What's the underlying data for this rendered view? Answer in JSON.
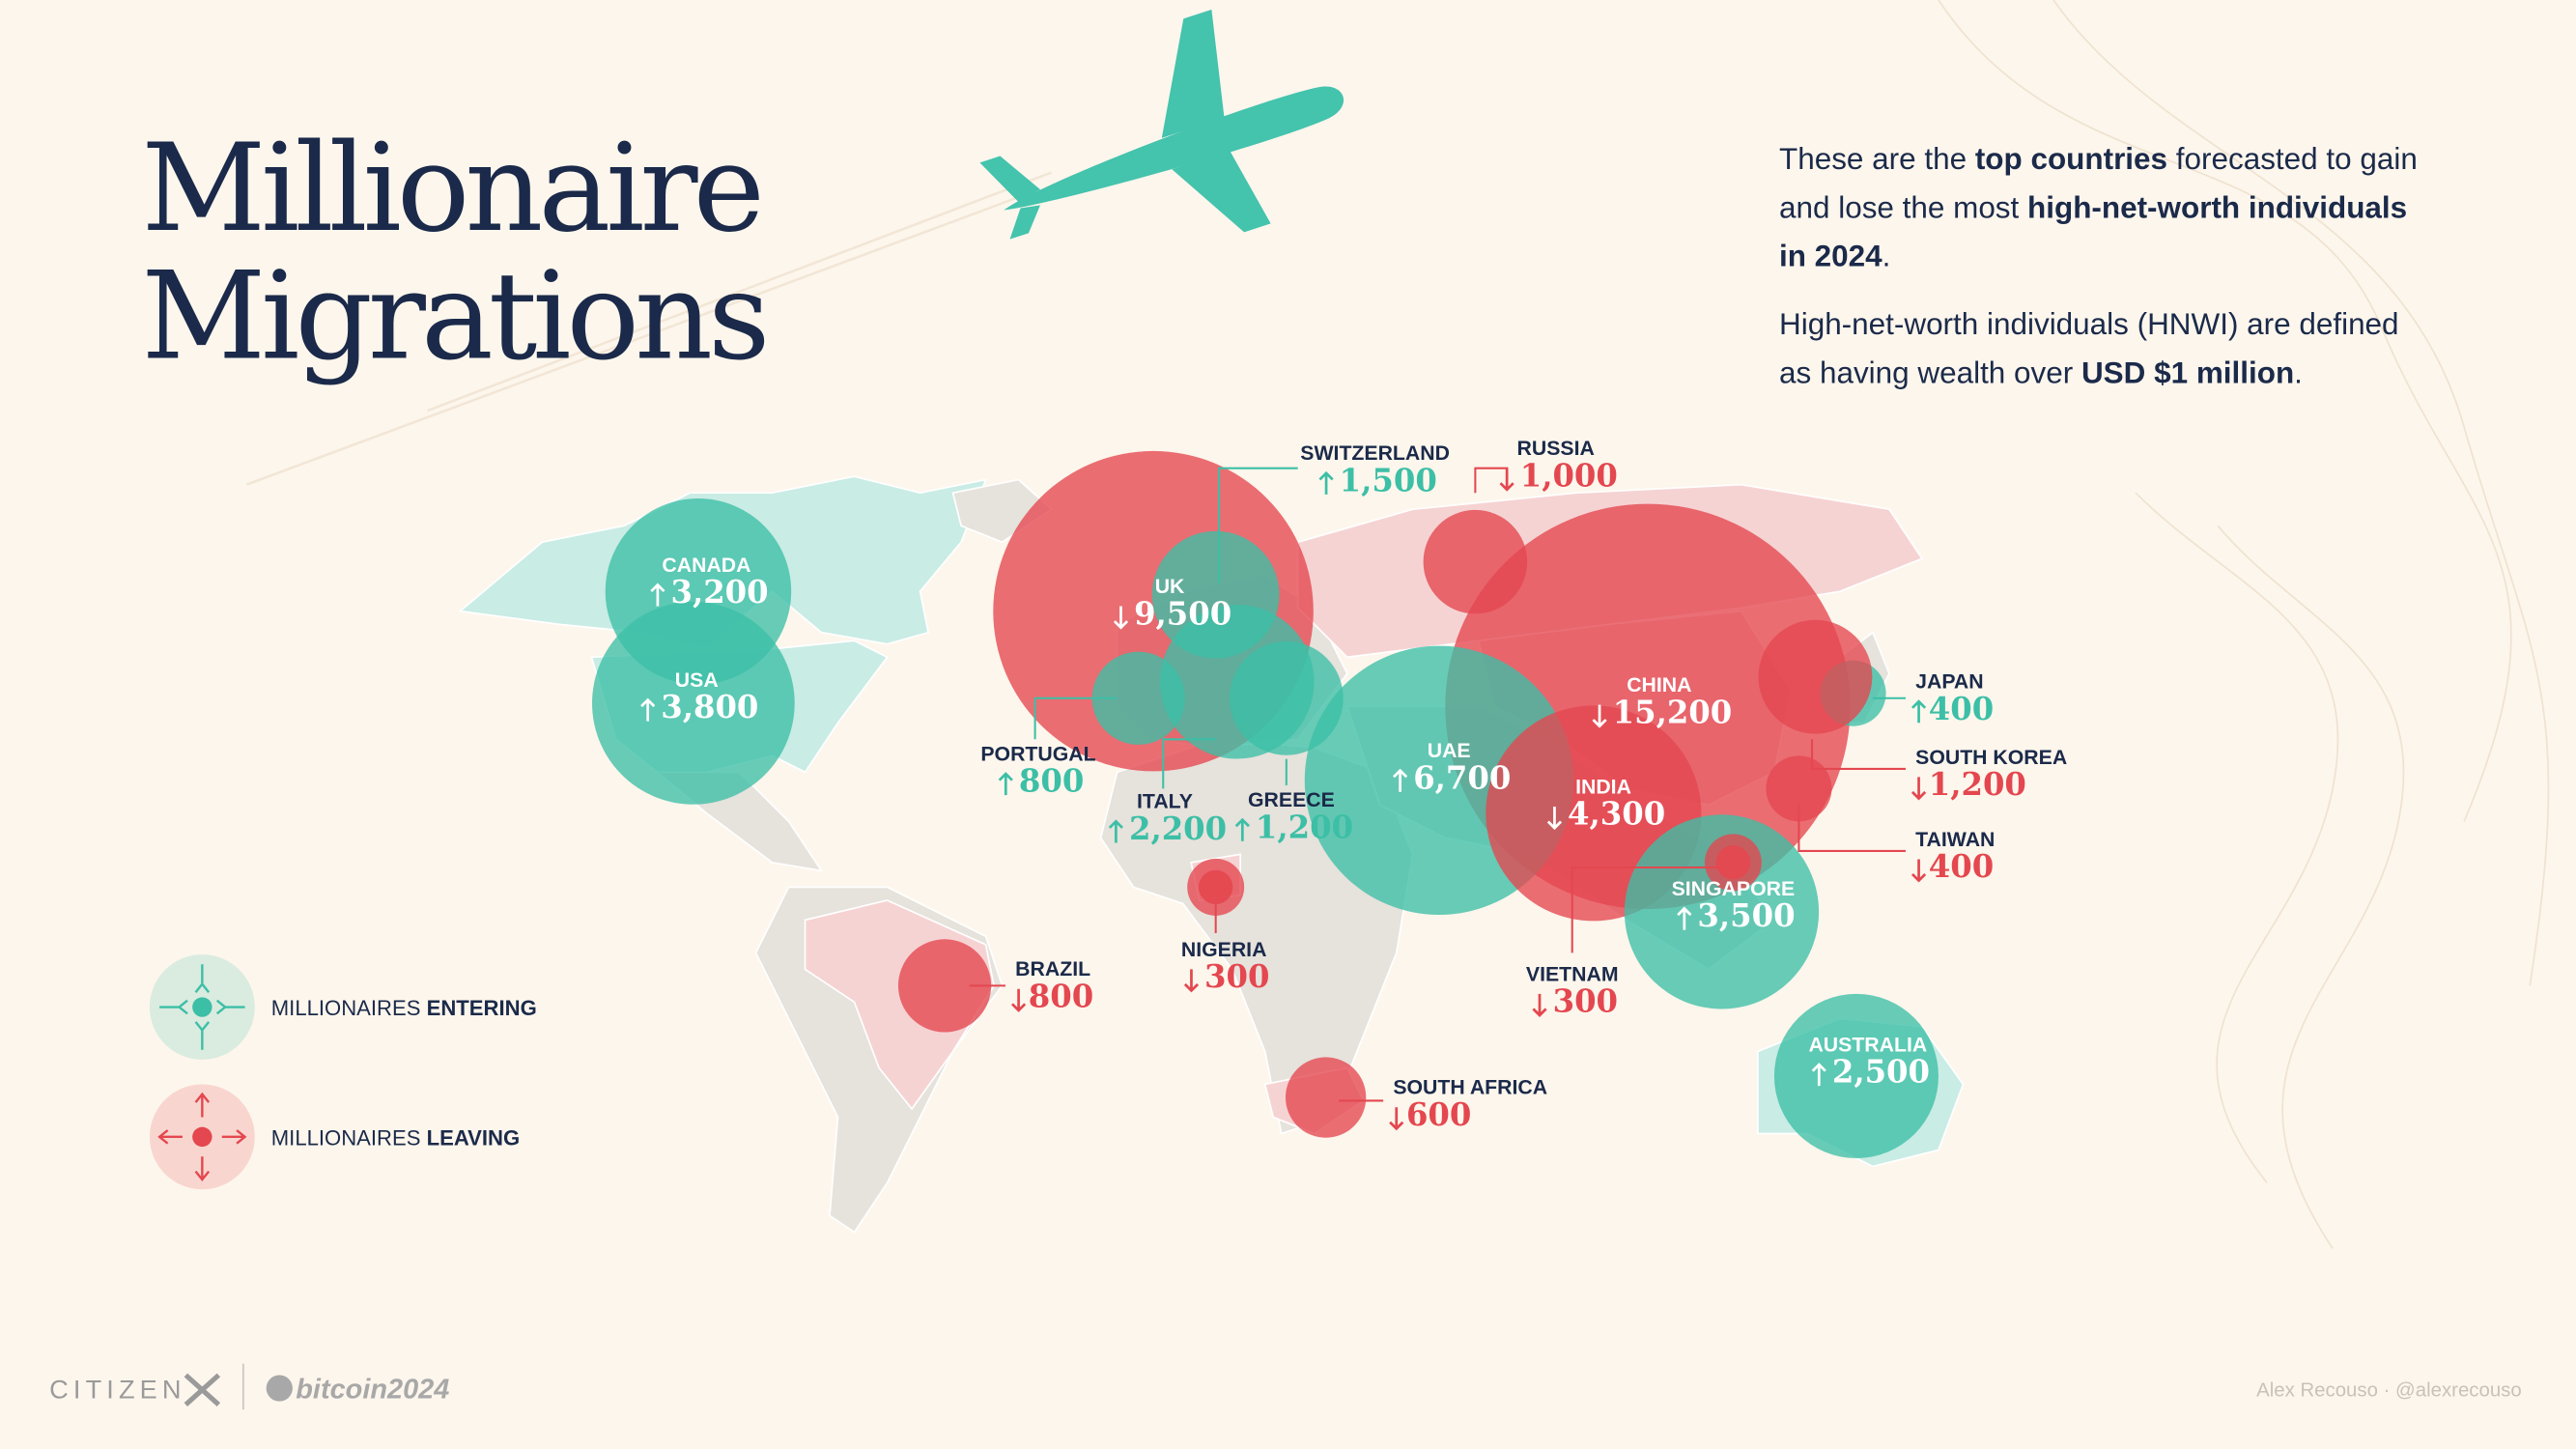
{
  "title": {
    "lines": [
      "Millionaire",
      "Migrations"
    ]
  },
  "description": {
    "paragraphs": [
      [
        [
          {
            "text": "These are the ",
            "bold": false
          },
          {
            "text": "top countries",
            "bold": true
          },
          {
            "text": " forecasted to gain",
            "bold": false
          }
        ],
        [
          {
            "text": "and lose the most ",
            "bold": false
          },
          {
            "text": "high-net-worth individuals",
            "bold": true
          }
        ],
        [
          {
            "text": "in 2024",
            "bold": true
          },
          {
            "text": ".",
            "bold": false
          }
        ]
      ],
      [
        [
          {
            "text": "High-net-worth individuals (HNWI) are defined",
            "bold": false
          }
        ],
        [
          {
            "text": "as having wealth over ",
            "bold": false
          },
          {
            "text": "USD $1 million",
            "bold": true
          },
          {
            "text": ".",
            "bold": false
          }
        ]
      ]
    ]
  },
  "legend": {
    "entering": {
      "parts": [
        {
          "text": "MILLIONAIRES ",
          "bold": false
        },
        {
          "text": "ENTERING",
          "bold": true
        }
      ],
      "color": "#3cbfa6"
    },
    "leaving": {
      "parts": [
        {
          "text": "MILLIONAIRES ",
          "bold": false
        },
        {
          "text": "LEAVING",
          "bold": true
        }
      ],
      "color": "#e4474f"
    }
  },
  "countries": [
    {
      "name": "CANADA",
      "value": {
        "value": 3200,
        "label": "3,200"
      },
      "flow": "entering"
    },
    {
      "name": "USA",
      "value": {
        "value": 3800,
        "label": "3,800"
      },
      "flow": "entering"
    },
    {
      "name": "UK",
      "value": {
        "value": 9500,
        "label": "9,500"
      },
      "flow": "leaving"
    },
    {
      "name": "PORTUGAL",
      "value": 800,
      "flow": "entering"
    },
    {
      "name": "SWITZERLAND",
      "value": {
        "value": 1500,
        "label": "1,500"
      },
      "flow": "entering"
    },
    {
      "name": "ITALY",
      "value": {
        "value": 2200,
        "label": "2,200"
      },
      "flow": "entering"
    },
    {
      "name": "GREECE",
      "value": {
        "value": 1200,
        "label": "1,200"
      },
      "flow": "entering"
    },
    {
      "name": "RUSSIA",
      "value": {
        "value": 1000,
        "label": "1,000"
      },
      "flow": "leaving"
    },
    {
      "name": "CHINA",
      "value": {
        "value": 15200,
        "label": "15,200"
      },
      "flow": "leaving"
    },
    {
      "name": "UAE",
      "value": {
        "value": 6700,
        "label": "6,700"
      },
      "flow": "entering"
    },
    {
      "name": "INDIA",
      "value": {
        "value": 4300,
        "label": "4,300"
      },
      "flow": "leaving"
    },
    {
      "name": "JAPAN",
      "value": 400,
      "flow": "entering"
    },
    {
      "name": "SOUTH KOREA",
      "value": {
        "value": 1200,
        "label": "1,200"
      },
      "flow": "leaving"
    },
    {
      "name": "TAIWAN",
      "value": 400,
      "flow": "leaving"
    },
    {
      "name": "SINGAPORE",
      "value": {
        "value": 3500,
        "label": "3,500"
      },
      "flow": "entering"
    },
    {
      "name": "VIETNAM",
      "value": 300,
      "flow": "leaving"
    },
    {
      "name": "NIGERIA",
      "value": 300,
      "flow": "leaving"
    },
    {
      "name": "BRAZIL",
      "value": 800,
      "flow": "leaving"
    },
    {
      "name": "SOUTH AFRICA",
      "value": 600,
      "flow": "leaving"
    },
    {
      "name": "AUSTRALIA",
      "value": {
        "value": 2500,
        "label": "2,500"
      },
      "flow": "entering"
    }
  ],
  "footer": {
    "brand": "CITIZEN",
    "partner": "bitcoin2024",
    "credit": "Alex Recouso · @alexrecouso"
  }
}
